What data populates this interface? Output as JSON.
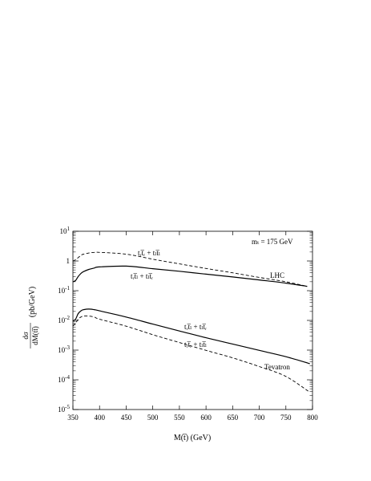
{
  "chart_data": {
    "type": "line",
    "xlabel": "M(t̅) (GeV)",
    "ylabel": {
      "fraction_numerator": "dσ",
      "fraction_denominator": "dM(tt̅)",
      "unit": "(pb/GeV)"
    },
    "xlim": [
      350,
      800
    ],
    "ylim": [
      1e-05,
      10
    ],
    "yscale": "log",
    "x_ticks": [
      "350",
      "400",
      "450",
      "500",
      "550",
      "600",
      "650",
      "700",
      "750",
      "800"
    ],
    "y_ticks": [
      {
        "base": "10",
        "exp": "1"
      },
      {
        "base": "1",
        "exp": ""
      },
      {
        "base": "10",
        "exp": "-1"
      },
      {
        "base": "10",
        "exp": "-2"
      },
      {
        "base": "10",
        "exp": "-3"
      },
      {
        "base": "10",
        "exp": "-4"
      },
      {
        "base": "10",
        "exp": "-5"
      }
    ],
    "grid": false,
    "annotations": {
      "top_mass": "mₜ = 175 GeV",
      "lhc": "LHC",
      "tevatron": "Tevatron",
      "lhc_dashed_label": "tᵣt̅ᵣ + tₗt̅ₗ",
      "lhc_solid_label": "tᵣt̅ₗ + tₗt̅ᵣ",
      "tev_solid_label": "tᵣt̅ₗ + tₗt̅ᵣ",
      "tev_dashed_label": "tᵣt̅ᵣ + tₗt̅ₗ"
    },
    "series": [
      {
        "style": "dashed",
        "x": [
          350,
          355,
          360,
          365,
          370,
          380,
          390,
          400,
          450,
          500,
          550,
          600,
          650,
          700,
          750,
          790
        ],
        "y": [
          1.0,
          1.1,
          1.3,
          1.55,
          1.7,
          1.85,
          1.95,
          1.95,
          1.7,
          1.15,
          0.8,
          0.56,
          0.4,
          0.28,
          0.2,
          0.14
        ]
      },
      {
        "style": "solid",
        "x": [
          350,
          355,
          360,
          365,
          370,
          380,
          390,
          400,
          450,
          500,
          550,
          600,
          650,
          700,
          750,
          790
        ],
        "y": [
          0.2,
          0.22,
          0.3,
          0.38,
          0.44,
          0.52,
          0.58,
          0.63,
          0.67,
          0.55,
          0.45,
          0.36,
          0.29,
          0.23,
          0.18,
          0.14
        ]
      },
      {
        "style": "solid",
        "x": [
          350,
          355,
          360,
          365,
          370,
          380,
          390,
          400,
          450,
          500,
          550,
          600,
          650,
          700,
          750,
          795
        ],
        "y": [
          0.0095,
          0.011,
          0.017,
          0.021,
          0.023,
          0.024,
          0.023,
          0.021,
          0.013,
          0.0075,
          0.0044,
          0.0026,
          0.0016,
          0.00098,
          0.0006,
          0.00035
        ]
      },
      {
        "style": "dashed",
        "x": [
          350,
          355,
          360,
          365,
          370,
          380,
          390,
          400,
          450,
          500,
          550,
          600,
          650,
          700,
          750,
          795
        ],
        "y": [
          0.0065,
          0.008,
          0.011,
          0.013,
          0.014,
          0.014,
          0.013,
          0.011,
          0.0064,
          0.0033,
          0.0018,
          0.00098,
          0.00055,
          0.00028,
          0.00013,
          3.8e-05
        ]
      }
    ]
  }
}
